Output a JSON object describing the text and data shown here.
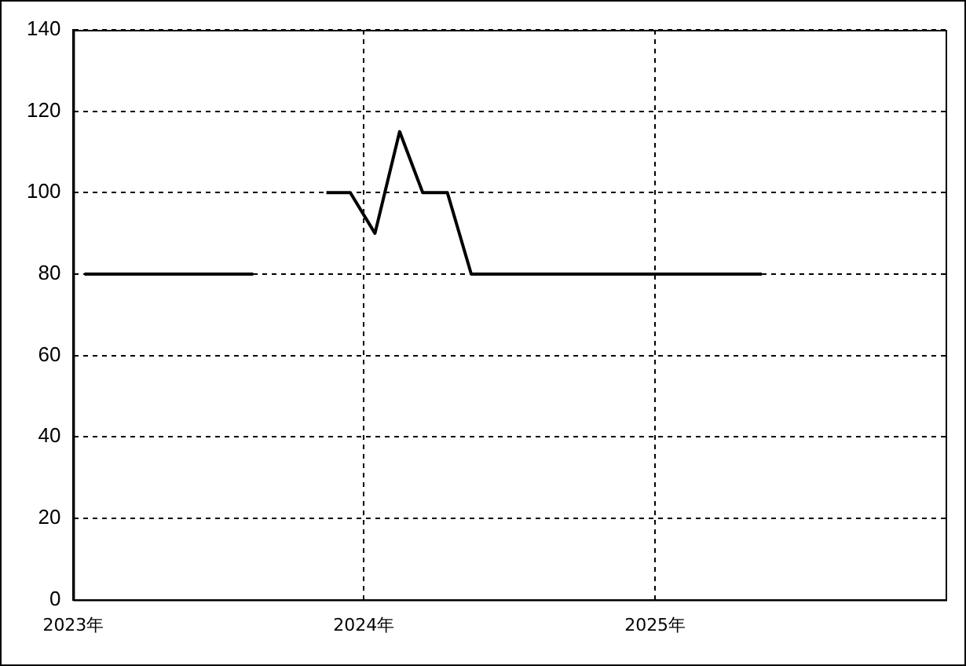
{
  "chart_data": {
    "type": "line",
    "x": [
      "2023-01-15",
      "2023-02-15",
      "2023-03-15",
      "2023-04-15",
      "2023-05-15",
      "2023-06-15",
      "2023-07-15",
      "2023-08-15",
      "2023-09-15",
      "2023-10-15",
      "2023-11-15",
      "2023-12-15",
      "2024-01-15",
      "2024-02-15",
      "2024-03-15",
      "2024-04-15",
      "2024-05-15",
      "2024-06-15",
      "2024-07-15",
      "2024-08-15",
      "2024-09-15",
      "2024-10-15",
      "2024-11-15",
      "2024-12-15",
      "2025-01-15",
      "2025-02-15",
      "2025-03-15",
      "2025-04-15",
      "2025-05-15"
    ],
    "series": [
      {
        "color": "#000000",
        "values": [
          80,
          80,
          80,
          80,
          80,
          80,
          80,
          80,
          null,
          null,
          100,
          100,
          90,
          115,
          100,
          100,
          80,
          80,
          80,
          80,
          80,
          80,
          80,
          80,
          80,
          80,
          80,
          80,
          80
        ]
      }
    ],
    "xlim": [
      "2023-01-01",
      "2026-01-01"
    ],
    "xticks": [
      {
        "value": "2023-01-01",
        "label": "2023年"
      },
      {
        "value": "2024-01-01",
        "label": "2024年"
      },
      {
        "value": "2025-01-01",
        "label": "2025年"
      }
    ],
    "ylim": [
      0,
      140
    ],
    "yticks": [
      0,
      20,
      40,
      60,
      80,
      100,
      120,
      140
    ],
    "grid": true,
    "legend": false,
    "marker": "none",
    "line_style": "solid"
  }
}
